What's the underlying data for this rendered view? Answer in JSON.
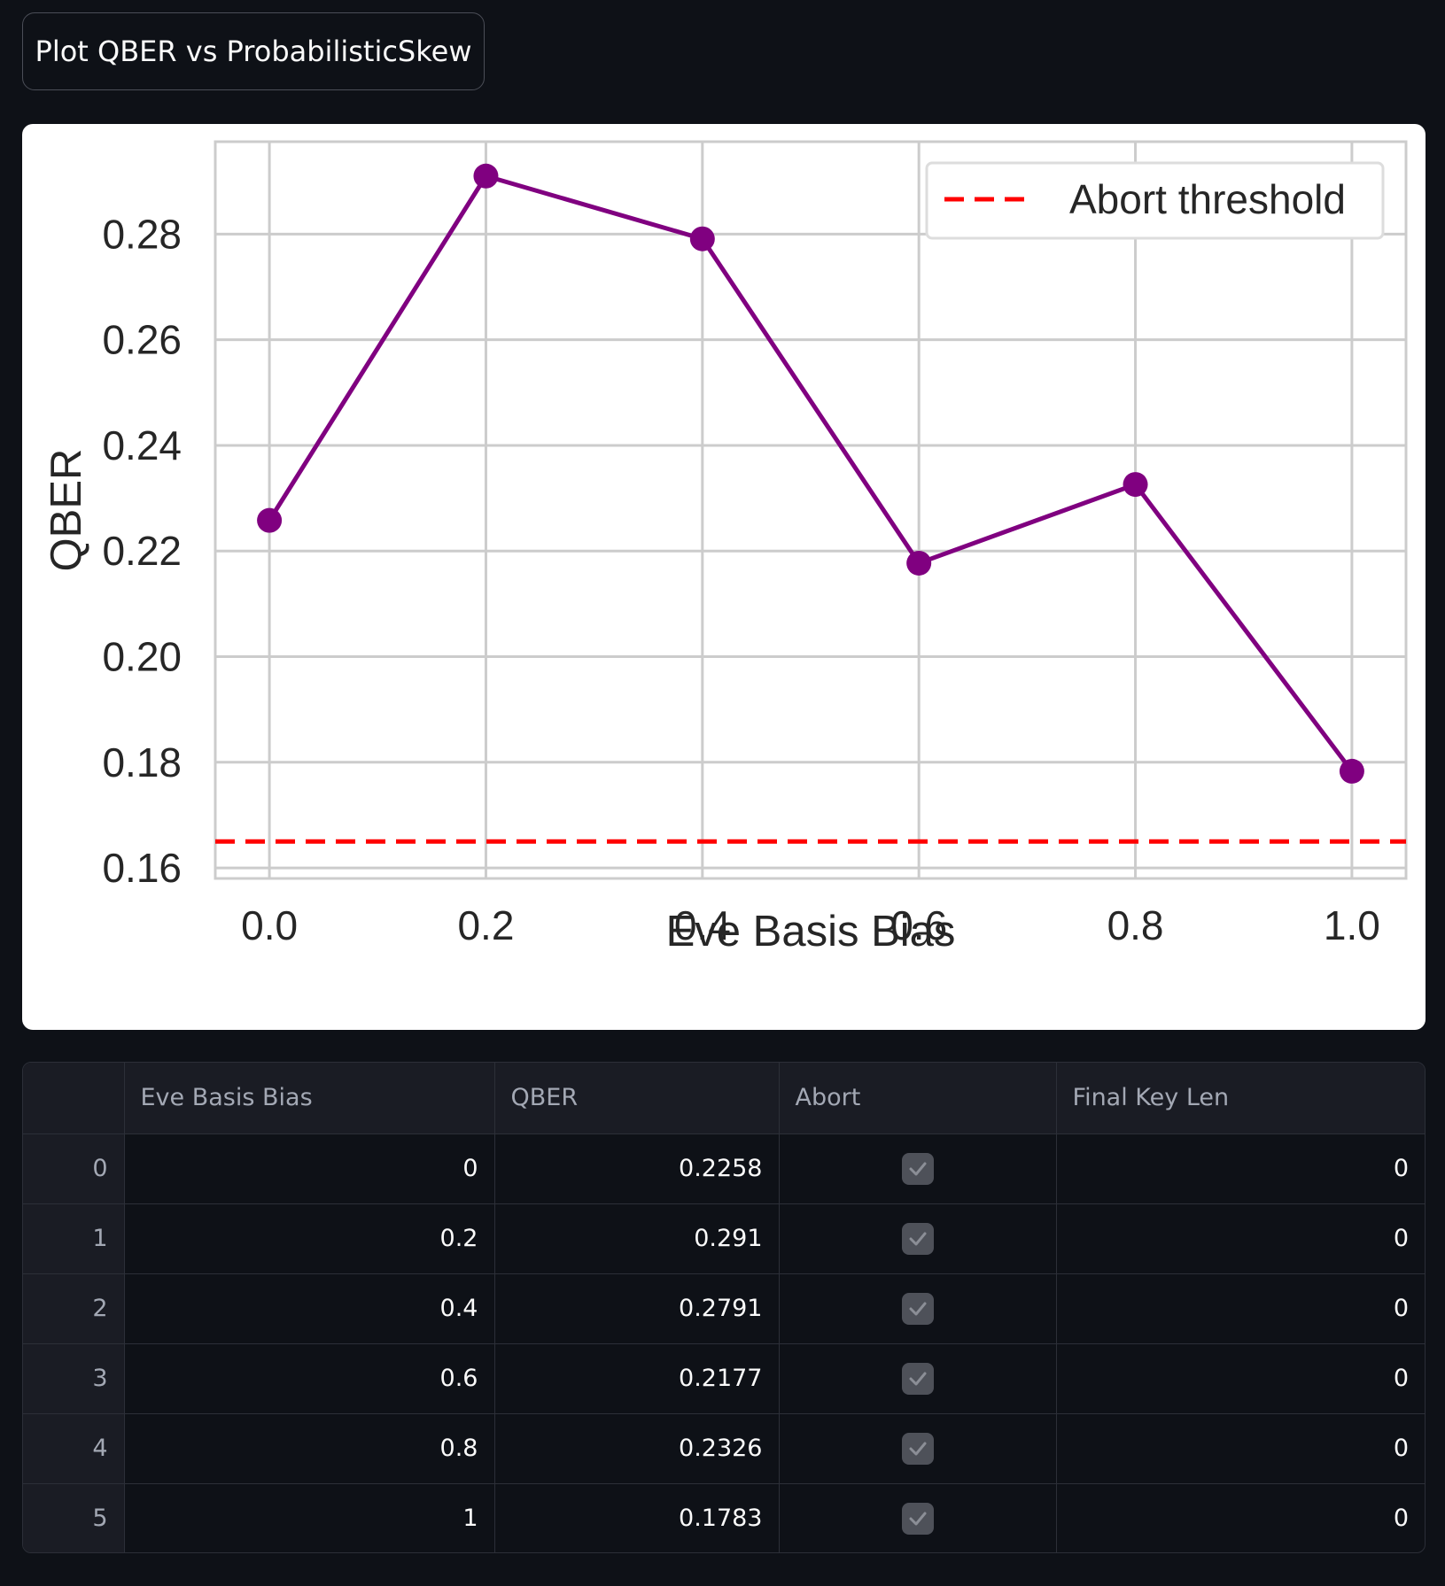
{
  "toolbar": {
    "plot_button_label": "Plot QBER vs ProbabilisticSkew"
  },
  "chart_data": {
    "type": "line",
    "xlabel": "Eve Basis Bias",
    "ylabel": "QBER",
    "x": [
      0.0,
      0.2,
      0.4,
      0.6,
      0.8,
      1.0
    ],
    "series": [
      {
        "values": [
          0.2258,
          0.291,
          0.2791,
          0.2177,
          0.2326,
          0.1783
        ],
        "color": "#800080",
        "marker": "circle"
      }
    ],
    "threshold": {
      "name": "Abort threshold",
      "value": 0.165,
      "color": "#ff0000",
      "style": "dashed"
    },
    "xlim": [
      -0.05,
      1.05
    ],
    "ylim": [
      0.158,
      0.2975
    ],
    "xticks": [
      "0.0",
      "0.2",
      "0.4",
      "0.6",
      "0.8",
      "1.0"
    ],
    "yticks": [
      "0.16",
      "0.18",
      "0.20",
      "0.22",
      "0.24",
      "0.26",
      "0.28"
    ],
    "grid": true,
    "legend_position": "top-right"
  },
  "table": {
    "columns": [
      "",
      "Eve Basis Bias",
      "QBER",
      "Abort",
      "Final Key Len"
    ],
    "rows": [
      {
        "index": "0",
        "bias": "0",
        "qber": "0.2258",
        "abort": true,
        "final_key_len": "0"
      },
      {
        "index": "1",
        "bias": "0.2",
        "qber": "0.291",
        "abort": true,
        "final_key_len": "0"
      },
      {
        "index": "2",
        "bias": "0.4",
        "qber": "0.2791",
        "abort": true,
        "final_key_len": "0"
      },
      {
        "index": "3",
        "bias": "0.6",
        "qber": "0.2177",
        "abort": true,
        "final_key_len": "0"
      },
      {
        "index": "4",
        "bias": "0.8",
        "qber": "0.2326",
        "abort": true,
        "final_key_len": "0"
      },
      {
        "index": "5",
        "bias": "1",
        "qber": "0.1783",
        "abort": true,
        "final_key_len": "0"
      }
    ]
  },
  "colors": {
    "background": "#0e1117",
    "line": "#800080",
    "threshold": "#ff0000",
    "checkbox": "#4e5159"
  }
}
